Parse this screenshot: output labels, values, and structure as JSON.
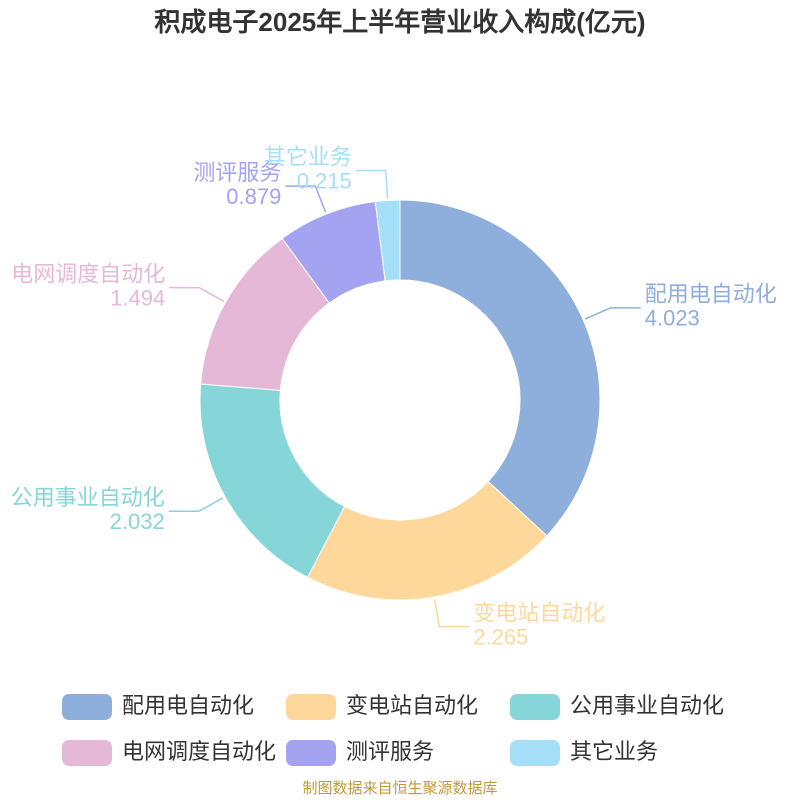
{
  "chart_data": {
    "type": "donut",
    "title": "积成电子2025年上半年营业收入构成(亿元)",
    "categories": [
      "配用电自动化",
      "变电站自动化",
      "公用事业自动化",
      "电网调度自动化",
      "测评服务",
      "其它业务"
    ],
    "values": [
      4.023,
      2.265,
      2.032,
      1.494,
      0.879,
      0.215
    ],
    "colors": [
      "#8eaedb",
      "#fdd89a",
      "#86d5d8",
      "#e5b8d8",
      "#a3a3f2",
      "#a5dff7"
    ],
    "legend": "bottom",
    "source": "制图数据来自恒生聚源数据库"
  }
}
